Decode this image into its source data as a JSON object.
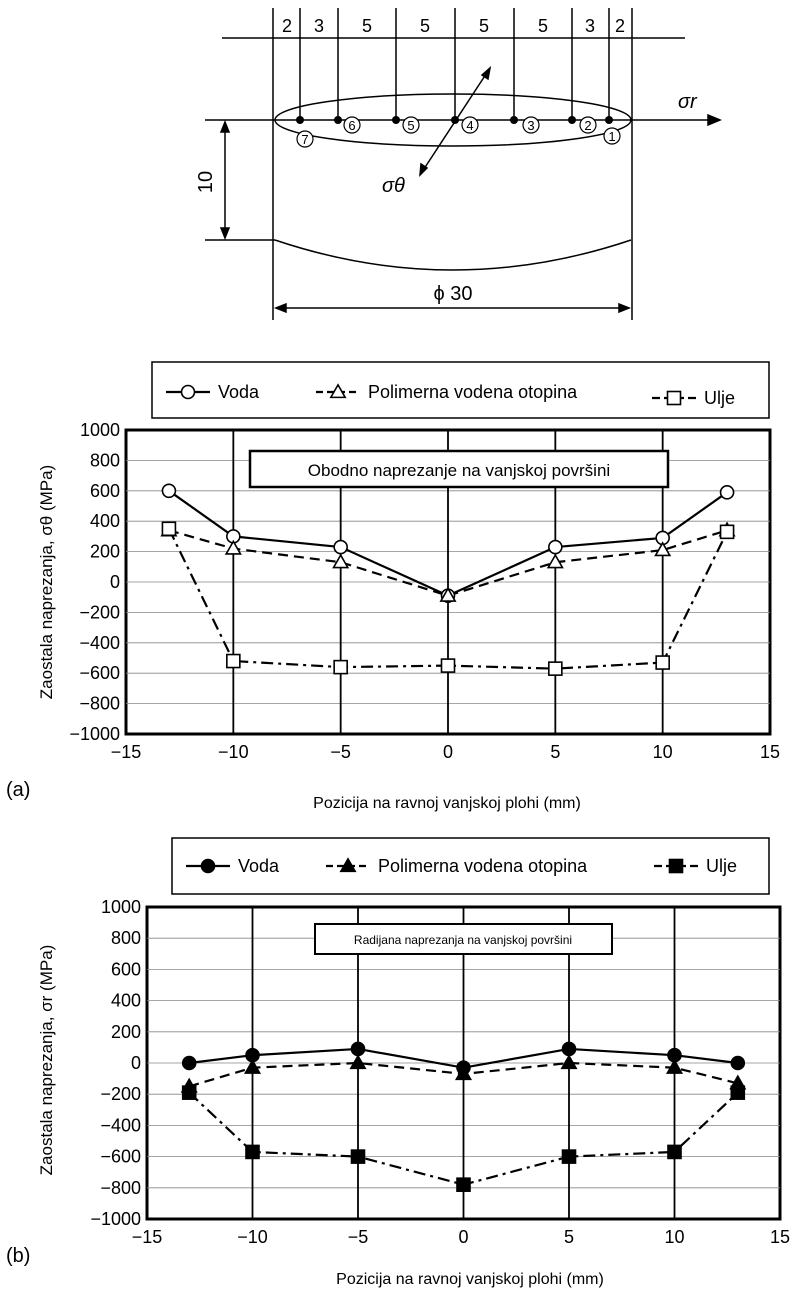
{
  "diagram": {
    "spacings": [
      "2",
      "3",
      "5",
      "5",
      "5",
      "5",
      "3",
      "2"
    ],
    "points": [
      "1",
      "2",
      "3",
      "4",
      "5",
      "6",
      "7"
    ],
    "sigma_r": "σr",
    "sigma_theta": "σθ",
    "height_dim": "10",
    "diameter_dim": "ϕ 30"
  },
  "colors": {
    "line": "#000000",
    "background": "#ffffff"
  },
  "chart_data": [
    {
      "type": "line",
      "panel_label": "(a)",
      "title": "Obodno naprezanje na vanjskoj površini",
      "xlabel": "Pozicija na ravnoj vanjskoj plohi (mm)",
      "ylabel": "Zaostala naprezanja, σθ (MPa)",
      "xlim": [
        -15,
        15
      ],
      "ylim": [
        -1000,
        1000
      ],
      "xticks": [
        "−15",
        "−10",
        "−5",
        "0",
        "5",
        "10",
        "15"
      ],
      "yticks": [
        "1000",
        "800",
        "600",
        "400",
        "200",
        "0",
        "−200",
        "−400",
        "−600",
        "−800",
        "−1000"
      ],
      "grid": true,
      "legend_position": "top",
      "x": [
        -13,
        -10,
        -5,
        0,
        5,
        10,
        13
      ],
      "series": [
        {
          "name": "Voda",
          "marker": "open-circle",
          "line": "solid",
          "values": [
            600,
            300,
            230,
            -90,
            230,
            290,
            590
          ]
        },
        {
          "name": "Polimerna vodena otopina",
          "marker": "open-triangle",
          "line": "dashed",
          "values": [
            340,
            220,
            130,
            -90,
            130,
            210,
            340
          ]
        },
        {
          "name": "Ulje",
          "marker": "open-square",
          "line": "dashdot",
          "values": [
            350,
            -520,
            -560,
            -550,
            -570,
            -530,
            330
          ]
        }
      ]
    },
    {
      "type": "line",
      "panel_label": "(b)",
      "title": "Radijana naprezanja na vanjskoj površini",
      "xlabel": "Pozicija na ravnoj vanjskoj plohi (mm)",
      "ylabel": "Zaostala naprezanja, σr (MPa)",
      "xlim": [
        -15,
        15
      ],
      "ylim": [
        -1000,
        1000
      ],
      "xticks": [
        "−15",
        "−10",
        "−5",
        "0",
        "5",
        "10",
        "15"
      ],
      "yticks": [
        "1000",
        "800",
        "600",
        "400",
        "200",
        "0",
        "−200",
        "−400",
        "−600",
        "−800",
        "−1000"
      ],
      "grid": true,
      "legend_position": "top",
      "x": [
        -13,
        -10,
        -5,
        0,
        5,
        10,
        13
      ],
      "series": [
        {
          "name": "Voda",
          "marker": "filled-circle",
          "line": "solid",
          "values": [
            0,
            50,
            90,
            -30,
            90,
            50,
            0
          ]
        },
        {
          "name": "Polimerna vodena otopina",
          "marker": "filled-triangle",
          "line": "dashed",
          "values": [
            -150,
            -30,
            0,
            -70,
            0,
            -30,
            -130
          ]
        },
        {
          "name": "Ulje",
          "marker": "filled-square",
          "line": "dashdot",
          "values": [
            -190,
            -570,
            -600,
            -780,
            -600,
            -570,
            -190
          ]
        }
      ]
    }
  ]
}
